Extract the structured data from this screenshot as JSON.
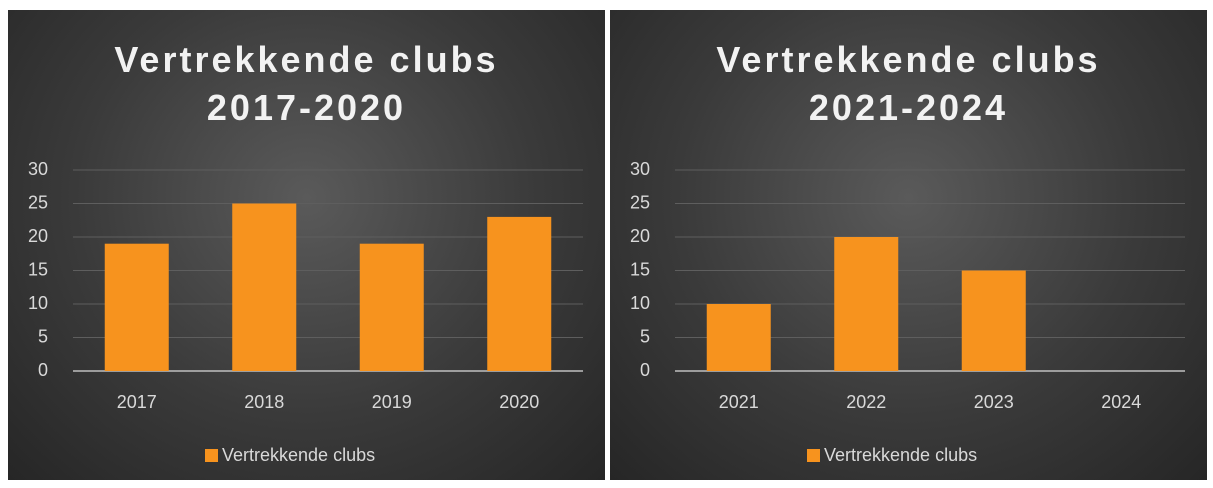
{
  "chart_data": [
    {
      "type": "bar",
      "title": "Vertrekkende clubs 2017-2020",
      "categories": [
        "2017",
        "2018",
        "2019",
        "2020"
      ],
      "series": [
        {
          "name": "Vertrekkende clubs",
          "color": "#f7931e",
          "values": [
            19,
            25,
            19,
            23
          ]
        }
      ],
      "ylim": [
        0,
        30
      ],
      "yticks": [
        0,
        5,
        10,
        15,
        20,
        25,
        30
      ],
      "grid": true,
      "legend": "bottom"
    },
    {
      "type": "bar",
      "title": "Vertrekkende clubs 2021-2024",
      "categories": [
        "2021",
        "2022",
        "2023",
        "2024"
      ],
      "series": [
        {
          "name": "Vertrekkende clubs",
          "color": "#f7931e",
          "values": [
            10,
            20,
            15,
            0
          ]
        }
      ],
      "ylim": [
        0,
        30
      ],
      "yticks": [
        0,
        5,
        10,
        15,
        20,
        25,
        30
      ],
      "grid": true,
      "legend": "bottom"
    }
  ]
}
